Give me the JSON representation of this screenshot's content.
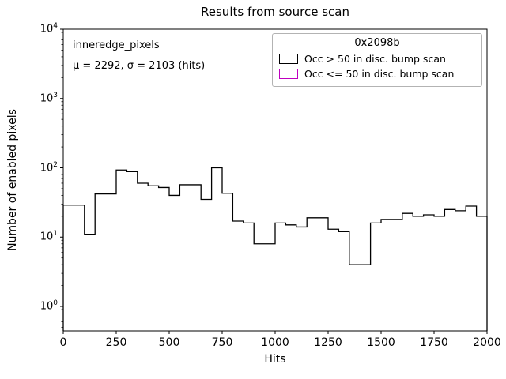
{
  "chart_data": {
    "type": "histogram",
    "title": "Results from source scan",
    "xlabel": "Hits",
    "ylabel": "Number of enabled pixels",
    "yscale": "log",
    "xlim": [
      0,
      2000
    ],
    "xticks": [
      0,
      250,
      500,
      750,
      1000,
      1250,
      1500,
      1750,
      2000
    ],
    "ytick_exponents": [
      0,
      1,
      2,
      3,
      4
    ],
    "grid": false,
    "bin_start": 0,
    "bin_width": 50,
    "counts": [
      29,
      29,
      11,
      42,
      42,
      93,
      88,
      60,
      55,
      52,
      40,
      57,
      57,
      35,
      100,
      43,
      17,
      16,
      8,
      8,
      16,
      15,
      14,
      19,
      19,
      13,
      12,
      4,
      4,
      16,
      18,
      18,
      22,
      20,
      21,
      20,
      25,
      24,
      28,
      20
    ],
    "series": [
      {
        "name": "Occ > 50 in disc. bump scan",
        "color": "#000000"
      },
      {
        "name": "Occ <= 50 in disc. bump scan",
        "color": "#bf00bf"
      }
    ],
    "legend": {
      "title": "0x2098b",
      "position": "upper right"
    },
    "annotation": {
      "line1": "inneredge_pixels",
      "line2": "μ = 2292, σ = 2103 (hits)"
    }
  }
}
